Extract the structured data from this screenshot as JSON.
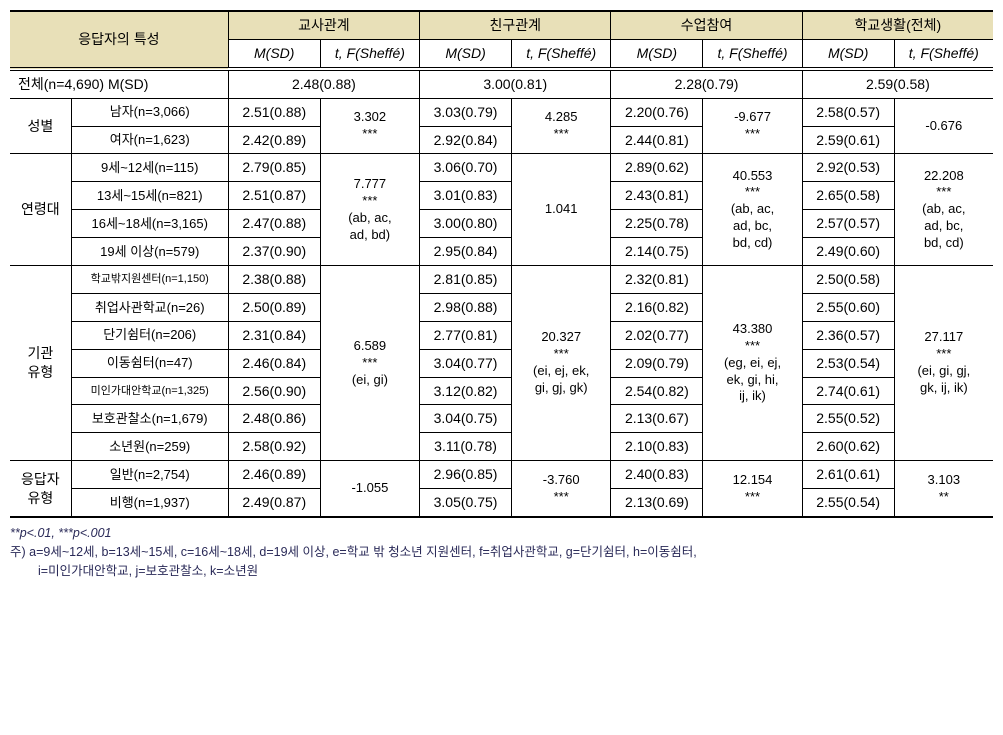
{
  "headers": {
    "respondent": "응답자의 특성",
    "col1": "교사관계",
    "col2": "친구관계",
    "col3": "수업참여",
    "col4": "학교생활(전체)",
    "msd": "M(SD)",
    "tf": "t, F(Sheffé)"
  },
  "totalRow": {
    "label": "전체(n=4,690)  M(SD)",
    "v1": "2.48(0.88)",
    "v2": "3.00(0.81)",
    "v3": "2.28(0.79)",
    "v4": "2.59(0.58)"
  },
  "groups": {
    "gender": {
      "label": "성별",
      "rows": [
        {
          "label": "남자(n=3,066)",
          "c1": "2.51(0.88)",
          "c2": "3.03(0.79)",
          "c3": "2.20(0.76)",
          "c4": "2.58(0.57)"
        },
        {
          "label": "여자(n=1,623)",
          "c1": "2.42(0.89)",
          "c2": "2.92(0.84)",
          "c3": "2.44(0.81)",
          "c4": "2.59(0.61)"
        }
      ],
      "t1": "3.302\n***",
      "t2": "4.285\n***",
      "t3": "-9.677\n***",
      "t4": "-0.676"
    },
    "age": {
      "label": "연령대",
      "rows": [
        {
          "label": "9세~12세(n=115)",
          "c1": "2.79(0.85)",
          "c2": "3.06(0.70)",
          "c3": "2.89(0.62)",
          "c4": "2.92(0.53)"
        },
        {
          "label": "13세~15세(n=821)",
          "c1": "2.51(0.87)",
          "c2": "3.01(0.83)",
          "c3": "2.43(0.81)",
          "c4": "2.65(0.58)"
        },
        {
          "label": "16세~18세(n=3,165)",
          "c1": "2.47(0.88)",
          "c2": "3.00(0.80)",
          "c3": "2.25(0.78)",
          "c4": "2.57(0.57)"
        },
        {
          "label": "19세 이상(n=579)",
          "c1": "2.37(0.90)",
          "c2": "2.95(0.84)",
          "c3": "2.14(0.75)",
          "c4": "2.49(0.60)"
        }
      ],
      "t1": "7.777\n***\n(ab, ac,\nad, bd)",
      "t2": "1.041",
      "t3": "40.553\n***\n(ab, ac,\nad, bc,\nbd, cd)",
      "t4": "22.208\n***\n(ab, ac,\nad, bc,\nbd, cd)"
    },
    "inst": {
      "label": "기관\n유형",
      "rows": [
        {
          "label": "학교밖지원센터(n=1,150)",
          "c1": "2.38(0.88)",
          "c2": "2.81(0.85)",
          "c3": "2.32(0.81)",
          "c4": "2.50(0.58)"
        },
        {
          "label": "취업사관학교(n=26)",
          "c1": "2.50(0.89)",
          "c2": "2.98(0.88)",
          "c3": "2.16(0.82)",
          "c4": "2.55(0.60)"
        },
        {
          "label": "단기쉼터(n=206)",
          "c1": "2.31(0.84)",
          "c2": "2.77(0.81)",
          "c3": "2.02(0.77)",
          "c4": "2.36(0.57)"
        },
        {
          "label": "이동쉼터(n=47)",
          "c1": "2.46(0.84)",
          "c2": "3.04(0.77)",
          "c3": "2.09(0.79)",
          "c4": "2.53(0.54)"
        },
        {
          "label": "미인가대안학교(n=1,325)",
          "c1": "2.56(0.90)",
          "c2": "3.12(0.82)",
          "c3": "2.54(0.82)",
          "c4": "2.74(0.61)"
        },
        {
          "label": "보호관찰소(n=1,679)",
          "c1": "2.48(0.86)",
          "c2": "3.04(0.75)",
          "c3": "2.13(0.67)",
          "c4": "2.55(0.52)"
        },
        {
          "label": "소년원(n=259)",
          "c1": "2.58(0.92)",
          "c2": "3.11(0.78)",
          "c3": "2.10(0.83)",
          "c4": "2.60(0.62)"
        }
      ],
      "t1": "6.589\n***\n(ei, gi)",
      "t2": "20.327\n***\n(ei, ej, ek,\ngi, gj, gk)",
      "t3": "43.380\n***\n(eg, ei, ej,\nek, gi, hi,\nij, ik)",
      "t4": "27.117\n***\n(ei, gi, gj,\ngk, ij, ik)"
    },
    "resp": {
      "label": "응답자\n유형",
      "rows": [
        {
          "label": "일반(n=2,754)",
          "c1": "2.46(0.89)",
          "c2": "2.96(0.85)",
          "c3": "2.40(0.83)",
          "c4": "2.61(0.61)"
        },
        {
          "label": "비행(n=1,937)",
          "c1": "2.49(0.87)",
          "c2": "3.05(0.75)",
          "c3": "2.13(0.69)",
          "c4": "2.55(0.54)"
        }
      ],
      "t1": "-1.055",
      "t2": "-3.760\n***",
      "t3": "12.154\n***",
      "t4": "3.103\n**"
    }
  },
  "footnotes": {
    "sig": "**p<.01,  ***p<.001",
    "legend1": "주) a=9세~12세, b=13세~15세, c=16세~18세, d=19세 이상, e=학교 밖 청소년 지원센터, f=취업사관학교, g=단기쉼터, h=이동쉼터,",
    "legend2": "i=미인가대안학교, j=보호관찰소, k=소년원"
  }
}
